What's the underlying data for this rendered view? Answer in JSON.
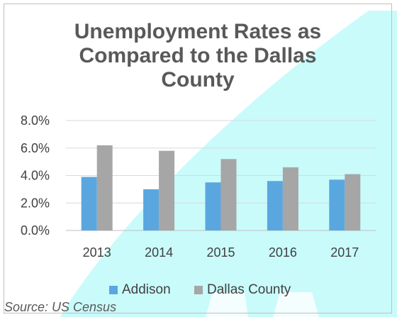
{
  "chart_data": {
    "type": "bar",
    "title_lines": [
      "Unemployment Rates as",
      "Compared to the Dallas",
      "County"
    ],
    "categories": [
      "2013",
      "2014",
      "2015",
      "2016",
      "2017"
    ],
    "series": [
      {
        "name": "Addison",
        "color": "#5aa7e0",
        "values": [
          0.039,
          0.03,
          0.035,
          0.036,
          0.037
        ]
      },
      {
        "name": "Dallas County",
        "color": "#a6a6a6",
        "values": [
          0.062,
          0.058,
          0.052,
          0.046,
          0.041
        ]
      }
    ],
    "y_ticks": [
      "0.0%",
      "2.0%",
      "4.0%",
      "6.0%",
      "8.0%"
    ],
    "ylim": [
      0,
      0.08
    ],
    "grid": true,
    "legend_position": "bottom"
  },
  "source_note": "Source: US Census",
  "background_accent_color": "#c9fbfb"
}
